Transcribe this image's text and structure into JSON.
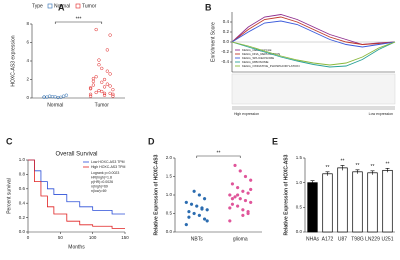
{
  "chart_data": [
    {
      "type": "strip",
      "label": "A",
      "legend_title": "Type",
      "legend": "top",
      "categories": [
        "Normal",
        "Tumor"
      ],
      "ylabel": "HOXC-AS3 expression",
      "annotation": "***",
      "ylim": [
        0,
        8
      ],
      "yticks": [
        0,
        2,
        4,
        6,
        8
      ],
      "series": [
        {
          "name": "Normal",
          "color": "#2b6cb0",
          "values": [
            0.1,
            0.2,
            0.05,
            0.15,
            0.1,
            0.3,
            0.08,
            0.12,
            0.2,
            0.1
          ]
        },
        {
          "name": "Tumor",
          "color": "#e02020",
          "values": [
            0.2,
            0.5,
            1.2,
            0.8,
            2.1,
            0.4,
            1.5,
            3.2,
            0.6,
            1.0,
            2.6,
            0.3,
            4.1,
            1.8,
            0.9,
            5.2,
            0.7,
            2.3,
            1.1,
            6.8,
            0.5,
            3.6,
            1.4,
            0.2,
            2.9,
            1.7,
            7.4,
            0.4,
            1.3,
            2.0
          ]
        }
      ]
    },
    {
      "type": "line",
      "label": "B",
      "ylabel": "Enrichment Score",
      "legend": "lower left",
      "x": [
        0,
        1,
        2,
        3,
        4,
        5,
        6,
        7,
        8,
        9,
        10
      ],
      "xlim": [
        0,
        10
      ],
      "ylim": [
        -0.6,
        0.6
      ],
      "yticks": [
        -0.4,
        -0.2,
        {
          "value": 0,
          "label": "0.0"
        },
        0.2,
        0.4
      ],
      "annotations": [
        "High expression",
        "Low expression"
      ],
      "series": [
        {
          "name": "KEGG_CELL_CYCLE",
          "color": "#8e2d8e",
          "values": [
            0,
            0.3,
            0.5,
            0.55,
            0.45,
            0.3,
            0.15,
            0.05,
            -0.05,
            -0.02,
            0
          ]
        },
        {
          "name": "KEGG_DNA_REPLICATION",
          "color": "#c0392b",
          "values": [
            0,
            0.25,
            0.45,
            0.5,
            0.4,
            0.25,
            0.1,
            0,
            -0.05,
            -0.03,
            0
          ]
        },
        {
          "name": "KEGG_SPLICEOSOME",
          "color": "#3b5bdb",
          "values": [
            0,
            0.2,
            0.38,
            0.42,
            0.35,
            0.2,
            0.05,
            -0.05,
            -0.1,
            -0.05,
            0
          ]
        },
        {
          "name": "KEGG_RIBOSOME",
          "color": "#2aa198",
          "values": [
            0,
            -0.1,
            -0.2,
            -0.3,
            -0.38,
            -0.45,
            -0.5,
            -0.48,
            -0.35,
            -0.15,
            0
          ]
        },
        {
          "name": "KEGG_OXIDATIVE_PHOSPHORYLATION",
          "color": "#8ab83c",
          "values": [
            0,
            -0.08,
            -0.18,
            -0.28,
            -0.36,
            -0.42,
            -0.46,
            -0.42,
            -0.3,
            -0.12,
            0
          ]
        }
      ]
    },
    {
      "type": "step",
      "label": "C",
      "title": "Overall Survival",
      "xlabel": "Months",
      "ylabel": "Percent survival",
      "legend": "upper right",
      "x": [
        0,
        10,
        20,
        30,
        40,
        60,
        80,
        100,
        130,
        150
      ],
      "xlim": [
        0,
        150
      ],
      "xticks": [
        0,
        50,
        100,
        150
      ],
      "ylim": [
        0,
        1
      ],
      "yticks": [
        {
          "value": 0,
          "label": "0.0"
        },
        0.2,
        0.4,
        0.6,
        0.8,
        {
          "value": 1,
          "label": "1.0"
        }
      ],
      "annotations": [
        "Logrank p=0.0023",
        "HR(high)=1.8",
        "p(HR)=0.0026",
        "n(high)=69",
        "n(low)=69"
      ],
      "series": [
        {
          "name": "Low HOXC-AS3 TPM",
          "color": "#2b4fd8",
          "values": [
            1,
            0.85,
            0.7,
            0.6,
            0.52,
            0.42,
            0.35,
            0.3,
            0.25,
            0.25
          ]
        },
        {
          "name": "High HOXC-AS3 TPM",
          "color": "#e02020",
          "values": [
            1,
            0.7,
            0.5,
            0.35,
            0.25,
            0.15,
            0.1,
            0.08,
            0.05,
            0.05
          ]
        }
      ]
    },
    {
      "type": "strip",
      "label": "D",
      "categories": [
        "NBTs",
        "glioma"
      ],
      "ylabel": "Relative Expression of HOXC-AS3",
      "annotation": "**",
      "ylim": [
        0,
        2
      ],
      "yticks": [
        {
          "value": 0,
          "label": "0.0"
        },
        0.5,
        {
          "value": 1,
          "label": "1.0"
        },
        1.5,
        {
          "value": 2,
          "label": "2.0"
        }
      ],
      "series": [
        {
          "name": "NBTs",
          "color": "#2b6cb0",
          "values": [
            0.2,
            0.35,
            0.45,
            0.5,
            0.55,
            0.6,
            0.62,
            0.7,
            0.75,
            0.8,
            0.9,
            1.0,
            1.1,
            0.4,
            0.3,
            0.65
          ]
        },
        {
          "name": "glioma",
          "color": "#e0559a",
          "values": [
            0.3,
            0.5,
            0.6,
            0.7,
            0.75,
            0.8,
            0.85,
            0.9,
            0.95,
            1.0,
            1.05,
            1.1,
            1.2,
            1.3,
            1.4,
            1.5,
            1.65,
            1.8,
            0.65,
            0.55,
            0.45,
            1.0,
            0.9,
            1.15
          ]
        }
      ]
    },
    {
      "type": "bar",
      "label": "E",
      "ylabel": "Relative Expression of HOXC-AS3",
      "categories": [
        "NHAs",
        "A172",
        "U87",
        "T98G",
        "LN229",
        "U251"
      ],
      "values": [
        1.0,
        1.18,
        1.3,
        1.22,
        1.2,
        1.25
      ],
      "errors": [
        0.04,
        0.04,
        0.05,
        0.04,
        0.04,
        0.04
      ],
      "colors": [
        "#000000",
        "#ffffff",
        "#ffffff",
        "#ffffff",
        "#ffffff",
        "#ffffff"
      ],
      "bar_labels": [
        null,
        "**",
        "**",
        "**",
        "**",
        "**"
      ],
      "ylim": [
        0,
        1.5
      ],
      "yticks": [
        {
          "value": 0,
          "label": "0.0"
        },
        0.5,
        {
          "value": 1,
          "label": "1.0"
        },
        1.5
      ]
    }
  ]
}
